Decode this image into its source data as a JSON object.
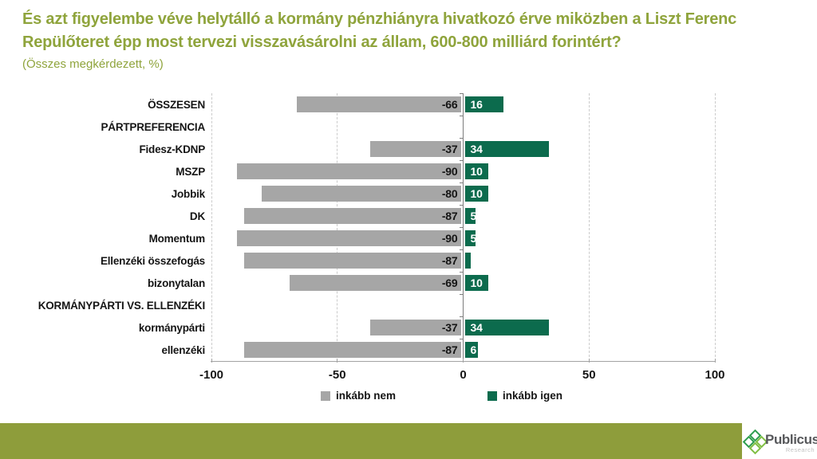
{
  "header": {
    "title": "És azt figyelembe véve helytálló a kormány pénzhiányra hivatkozó érve miközben a Liszt Ferenc Repülőteret épp most tervezi visszavásárolni az állam, 600-800 milliárd forintért?",
    "subtitle": "(Összes megkérdezett, %)"
  },
  "colors": {
    "title": "#8FA43C",
    "footer_bar": "#8E9D3B",
    "bar_negative": "#A6A6A6",
    "bar_positive": "#0C6B4D",
    "gridline": "#CBCBCB",
    "axis": "#7D7D7D"
  },
  "chart_data": {
    "type": "bar",
    "orientation": "horizontal-diverging",
    "title": "És azt figyelembe véve helytálló a kormány pénzhiányra hivatkozó érve miközben a Liszt Ferenc Repülőteret épp most tervezi visszavásárolni az állam, 600-800 milliárd forintért?",
    "subtitle": "(Összes megkérdezett, %)",
    "xlim": [
      -100,
      100
    ],
    "xticks": [
      -100,
      -50,
      0,
      50,
      100
    ],
    "xtick_labels": [
      "-100",
      "-50",
      "0",
      "50",
      "100"
    ],
    "grid": "vertical-dashed",
    "legend_position": "bottom-center",
    "categories": [
      "ÖSSZESEN",
      "PÁRTPREFERENCIA",
      "Fidesz-KDNP",
      "MSZP",
      "Jobbik",
      "DK",
      "Momentum",
      "Ellenzéki összefogás",
      "bizonytalan",
      "KORMÁNYPÁRTI VS. ELLENZÉKI",
      "kormánypárti",
      "ellenzéki"
    ],
    "section_header_rows": [
      1,
      9
    ],
    "series": [
      {
        "name": "inkább nem",
        "color": "#A6A6A6",
        "values": [
          -66,
          null,
          -37,
          -90,
          -80,
          -87,
          -90,
          -87,
          -69,
          null,
          -37,
          -87
        ],
        "labels": [
          "-66",
          "",
          "-37",
          "-90",
          "-80",
          "-87",
          "-90",
          "-87",
          "-69",
          "",
          "-37",
          "-87"
        ]
      },
      {
        "name": "inkább igen",
        "color": "#0C6B4D",
        "values": [
          16,
          null,
          34,
          10,
          10,
          5,
          5,
          2,
          10,
          null,
          34,
          6
        ],
        "labels": [
          "16",
          "",
          "34",
          "10",
          "10",
          "5",
          "5",
          "",
          "10",
          "",
          "34",
          "6"
        ]
      }
    ]
  },
  "footer": {
    "brand": "Publicus",
    "brand_sub": "Research"
  }
}
